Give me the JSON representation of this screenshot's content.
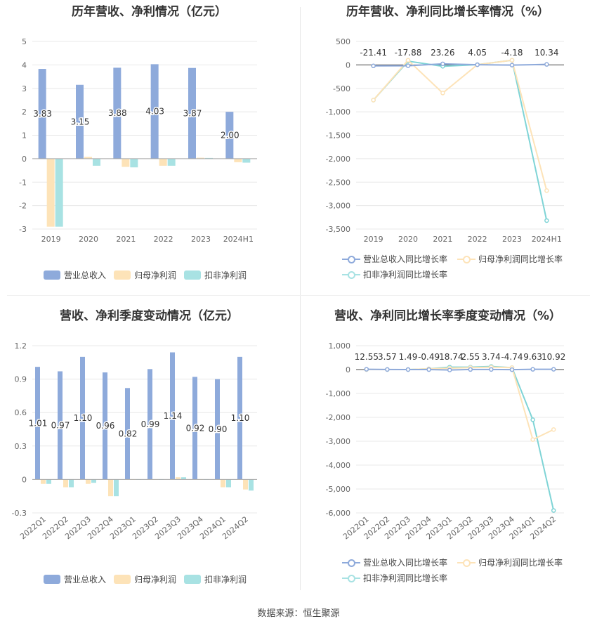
{
  "colors": {
    "revenue": "#8eaadb",
    "net_profit": "#fde3b8",
    "deducted_profit": "#a8e2e3",
    "revenue_line": "#8eaadb",
    "net_line": "#fde3b8",
    "deducted_line": "#7fd4d6",
    "grid": "#e8e8e8",
    "axis_text": "#666666"
  },
  "source_text": "数据来源：恒生聚源",
  "legend_bar": [
    "营业总收入",
    "归母净利润",
    "扣非净利润"
  ],
  "legend_line": [
    "营业总收入同比增长率",
    "归母净利润同比增长率",
    "扣非净利润同比增长率"
  ],
  "chart_data": [
    {
      "id": "annual_amount",
      "type": "bar",
      "title": "历年营收、净利情况（亿元）",
      "categories": [
        "2019",
        "2020",
        "2021",
        "2022",
        "2023",
        "2024H1"
      ],
      "series": [
        {
          "name": "营业总收入",
          "values": [
            3.83,
            3.15,
            3.88,
            4.03,
            3.87,
            2.0
          ]
        },
        {
          "name": "归母净利润",
          "values": [
            -2.9,
            0.08,
            -0.35,
            -0.3,
            0.04,
            -0.15
          ]
        },
        {
          "name": "扣非净利润",
          "values": [
            -2.9,
            -0.3,
            -0.37,
            -0.3,
            0.03,
            -0.17
          ]
        }
      ],
      "data_labels": [
        "3.83",
        "3.15",
        "3.88",
        "4.03",
        "3.87",
        "2.00"
      ],
      "ylim": [
        -3,
        5
      ],
      "yticks": [
        "-3",
        "-2",
        "-1",
        "0",
        "1",
        "2",
        "3",
        "4",
        "5"
      ],
      "legend": "bottom"
    },
    {
      "id": "annual_growth",
      "type": "line",
      "title": "历年营收、净利同比增长率情况（%）",
      "categories": [
        "2019",
        "2020",
        "2021",
        "2022",
        "2023",
        "2024H1"
      ],
      "series": [
        {
          "name": "营业总收入同比增长率",
          "values": [
            -21.41,
            -17.88,
            23.26,
            4.05,
            -4.18,
            10.34
          ]
        },
        {
          "name": "归母净利润同比增长率",
          "values": [
            -750,
            100,
            -600,
            5,
            100,
            -2680
          ]
        },
        {
          "name": "扣非净利润同比增长率",
          "values": [
            -750,
            80,
            -30,
            5,
            100,
            -3320
          ]
        }
      ],
      "data_labels": [
        "-21.41",
        "-17.88",
        "23.26",
        "4.05",
        "-4.18",
        "10.34"
      ],
      "ylim": [
        -3500,
        500
      ],
      "yticks": [
        "-3,500",
        "-3,000",
        "-2,500",
        "-2,000",
        "-1,500",
        "-1,000",
        "-500",
        "0",
        "500"
      ],
      "legend": "bottom"
    },
    {
      "id": "quarterly_amount",
      "type": "bar",
      "title": "营收、净利季度变动情况（亿元）",
      "categories": [
        "2022Q1",
        "2022Q2",
        "2022Q3",
        "2022Q4",
        "2023Q1",
        "2023Q2",
        "2023Q3",
        "2023Q4",
        "2024Q1",
        "2024Q2"
      ],
      "series": [
        {
          "name": "营业总收入",
          "values": [
            1.01,
            0.97,
            1.1,
            0.96,
            0.82,
            0.99,
            1.14,
            0.92,
            0.9,
            1.1
          ]
        },
        {
          "name": "归母净利润",
          "values": [
            -0.04,
            -0.07,
            -0.04,
            -0.15,
            0.0,
            0.0,
            0.02,
            0.0,
            -0.07,
            -0.09
          ]
        },
        {
          "name": "扣非净利润",
          "values": [
            -0.04,
            -0.07,
            -0.03,
            -0.15,
            0.0,
            0.0,
            0.02,
            0.0,
            -0.07,
            -0.1
          ]
        }
      ],
      "data_labels": [
        "1.01",
        "0.97",
        "1.10",
        "0.96",
        "0.82",
        "0.99",
        "1.14",
        "0.92",
        "0.90",
        "1.10"
      ],
      "ylim": [
        -0.3,
        1.2
      ],
      "yticks": [
        "-0.3",
        "0",
        "0.3",
        "0.6",
        "0.9",
        "1.2"
      ],
      "legend": "bottom"
    },
    {
      "id": "quarterly_growth",
      "type": "line",
      "title": "营收、净利同比增长率季度变动情况（%）",
      "categories": [
        "2022Q1",
        "2022Q2",
        "2022Q3",
        "2022Q4",
        "2023Q1",
        "2023Q2",
        "2023Q3",
        "2023Q4",
        "2024Q1",
        "2024Q2"
      ],
      "series": [
        {
          "name": "营业总收入同比增长率",
          "values": [
            12.55,
            3.57,
            1.49,
            -0.49,
            -18.74,
            2.55,
            3.74,
            -4.74,
            9.63,
            10.92
          ]
        },
        {
          "name": "归母净利润同比增长率",
          "values": [
            0,
            0,
            0,
            30,
            60,
            80,
            100,
            80,
            -2930,
            -2510
          ]
        },
        {
          "name": "扣非净利润同比增长率",
          "values": [
            0,
            0,
            0,
            30,
            100,
            100,
            130,
            80,
            -2100,
            -5900
          ]
        }
      ],
      "data_labels": [
        "12.55",
        "3.57",
        "1.49",
        "-0.49",
        "-18.74",
        "2.55",
        "3.74",
        "-4.74",
        "9.63",
        "10.92"
      ],
      "ylim": [
        -6000,
        1000
      ],
      "yticks": [
        "-6,000",
        "-5,000",
        "-4,000",
        "-3,000",
        "-2,000",
        "-1,000",
        "0",
        "1,000"
      ],
      "legend": "bottom"
    }
  ]
}
